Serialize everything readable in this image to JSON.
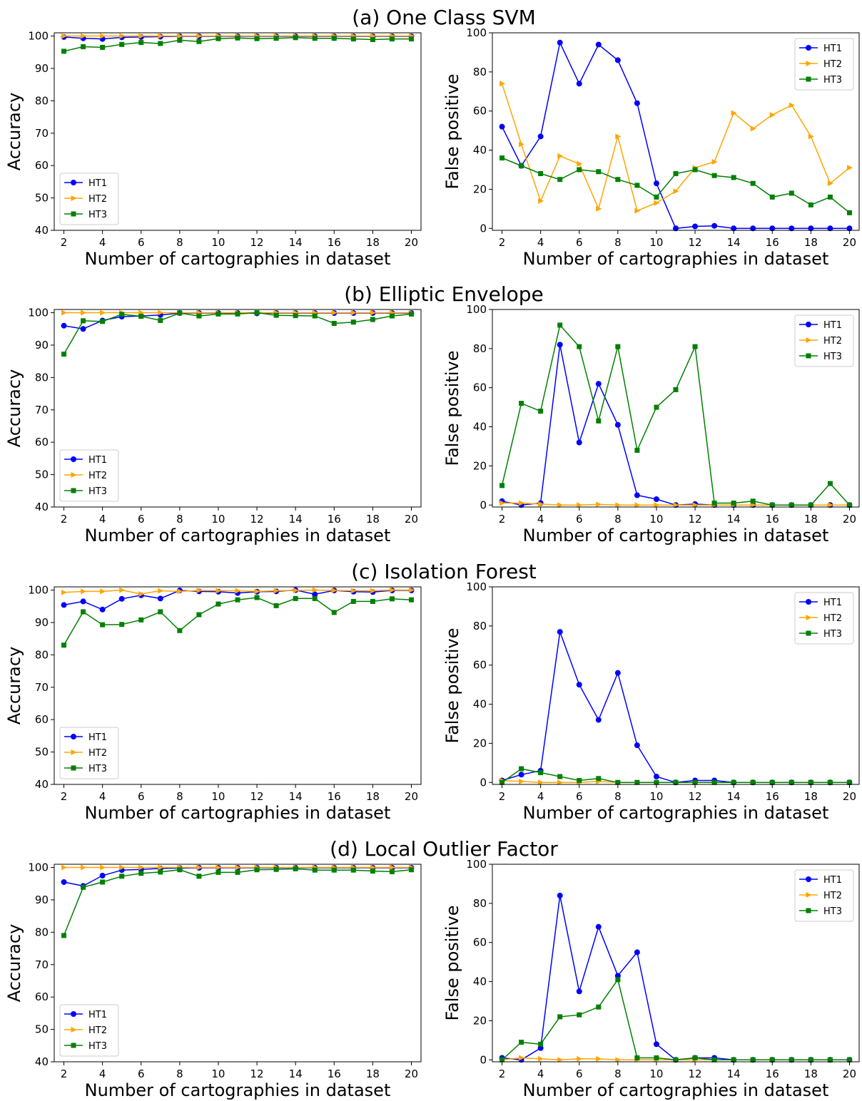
{
  "series_styles": [
    {
      "name": "HT1",
      "color": "#0000ff",
      "marker": "circle"
    },
    {
      "name": "HT2",
      "color": "#ffa500",
      "marker": "triangle-right"
    },
    {
      "name": "HT3",
      "color": "#008000",
      "marker": "square"
    }
  ],
  "rows": [
    {
      "title": "(a) One Class SVM"
    },
    {
      "title": "(b) Elliptic Envelope"
    },
    {
      "title": "(c) Isolation Forest"
    },
    {
      "title": "(d) Local Outlier Factor"
    }
  ],
  "chart_data": [
    {
      "type": "line",
      "row": 0,
      "col": 0,
      "title": "",
      "xlabel": "Number of cartographies in dataset",
      "ylabel": "Accuracy",
      "xlim": [
        1.5,
        20.5
      ],
      "ylim": [
        40,
        101
      ],
      "xticks": [
        2,
        4,
        6,
        8,
        10,
        12,
        14,
        16,
        18,
        20
      ],
      "yticks": [
        40,
        50,
        60,
        70,
        80,
        90,
        100
      ],
      "legend": "bottom-left",
      "x": [
        2,
        3,
        4,
        5,
        6,
        7,
        8,
        9,
        10,
        11,
        12,
        13,
        14,
        15,
        16,
        17,
        18,
        19,
        20
      ],
      "series": [
        {
          "name": "HT1",
          "values": [
            99.7,
            99.3,
            99.1,
            99.6,
            99.7,
            99.8,
            99.9,
            99.9,
            99.9,
            99.9,
            99.9,
            99.9,
            99.9,
            99.9,
            99.9,
            99.9,
            99.9,
            99.9,
            99.9
          ]
        },
        {
          "name": "HT2",
          "values": [
            100.0,
            100.0,
            100.0,
            100.0,
            100.0,
            100.0,
            100.0,
            100.0,
            100.0,
            100.0,
            100.0,
            100.0,
            100.0,
            100.0,
            100.0,
            100.0,
            100.0,
            100.0,
            100.0
          ]
        },
        {
          "name": "HT3",
          "values": [
            95.3,
            96.7,
            96.5,
            97.4,
            98.0,
            97.7,
            98.7,
            98.3,
            99.2,
            99.4,
            99.2,
            99.3,
            99.5,
            99.3,
            99.3,
            99.1,
            98.9,
            99.1,
            99.1
          ]
        }
      ]
    },
    {
      "type": "line",
      "row": 0,
      "col": 1,
      "title": "",
      "xlabel": "Number of cartographies in dataset",
      "ylabel": "False positive",
      "xlim": [
        1.5,
        20.5
      ],
      "ylim": [
        -1,
        100
      ],
      "xticks": [
        2,
        4,
        6,
        8,
        10,
        12,
        14,
        16,
        18,
        20
      ],
      "yticks": [
        0,
        20,
        40,
        60,
        80,
        100
      ],
      "legend": "top-right",
      "x": [
        2,
        3,
        4,
        5,
        6,
        7,
        8,
        9,
        10,
        11,
        12,
        13,
        14,
        15,
        16,
        17,
        18,
        19,
        20
      ],
      "series": [
        {
          "name": "HT1",
          "values": [
            52,
            32,
            47,
            95,
            74,
            94,
            86,
            64,
            23,
            0,
            1,
            1.3,
            0,
            0,
            0,
            0,
            0,
            0,
            0
          ]
        },
        {
          "name": "HT2",
          "values": [
            74,
            43,
            14,
            37,
            33,
            10,
            47,
            9,
            13,
            19,
            31,
            34,
            59,
            51,
            58,
            63,
            47,
            23,
            31
          ]
        },
        {
          "name": "HT3",
          "values": [
            36,
            32,
            28,
            25,
            30,
            29,
            25,
            22,
            16,
            28,
            30,
            27,
            26,
            23,
            16,
            18,
            12,
            16,
            8
          ]
        }
      ]
    },
    {
      "type": "line",
      "row": 1,
      "col": 0,
      "title": "",
      "xlabel": "Number of cartographies in dataset",
      "ylabel": "Accuracy",
      "xlim": [
        1.5,
        20.5
      ],
      "ylim": [
        40,
        101
      ],
      "xticks": [
        2,
        4,
        6,
        8,
        10,
        12,
        14,
        16,
        18,
        20
      ],
      "yticks": [
        40,
        50,
        60,
        70,
        80,
        90,
        100
      ],
      "legend": "bottom-left",
      "x": [
        2,
        3,
        4,
        5,
        6,
        7,
        8,
        9,
        10,
        11,
        12,
        13,
        14,
        15,
        16,
        17,
        18,
        19,
        20
      ],
      "series": [
        {
          "name": "HT1",
          "values": [
            96.0,
            95.0,
            97.6,
            98.8,
            99.0,
            99.3,
            99.9,
            99.9,
            99.9,
            99.9,
            99.8,
            99.9,
            99.9,
            99.9,
            99.9,
            99.9,
            99.9,
            99.9,
            99.9
          ]
        },
        {
          "name": "HT2",
          "values": [
            100.0,
            100.0,
            100.0,
            100.0,
            100.0,
            100.0,
            100.0,
            100.0,
            100.0,
            100.0,
            100.0,
            100.0,
            100.0,
            100.0,
            100.0,
            100.0,
            100.0,
            100.0,
            100.0
          ]
        },
        {
          "name": "HT3",
          "values": [
            87.2,
            97.5,
            97.3,
            99.5,
            98.9,
            97.6,
            99.9,
            99.0,
            99.6,
            99.6,
            100.0,
            99.2,
            99.1,
            99.0,
            96.7,
            97.1,
            97.9,
            99.0,
            99.6
          ]
        }
      ]
    },
    {
      "type": "line",
      "row": 1,
      "col": 1,
      "title": "",
      "xlabel": "Number of cartographies in dataset",
      "ylabel": "False positive",
      "xlim": [
        1.5,
        20.5
      ],
      "ylim": [
        -1,
        100
      ],
      "xticks": [
        2,
        4,
        6,
        8,
        10,
        12,
        14,
        16,
        18,
        20
      ],
      "yticks": [
        0,
        20,
        40,
        60,
        80,
        100
      ],
      "legend": "top-right",
      "x": [
        2,
        3,
        4,
        5,
        6,
        7,
        8,
        9,
        10,
        11,
        12,
        13,
        14,
        15,
        16,
        17,
        18,
        19,
        20
      ],
      "series": [
        {
          "name": "HT1",
          "values": [
            2,
            0,
            1,
            82,
            32,
            62,
            41,
            5,
            3,
            0,
            0.5,
            0,
            0,
            0,
            0,
            0,
            0,
            0,
            0
          ]
        },
        {
          "name": "HT2",
          "values": [
            1,
            1,
            0.5,
            0,
            0,
            0.3,
            0,
            0,
            0,
            0,
            0,
            0,
            0,
            0,
            0,
            0,
            0,
            0,
            0
          ]
        },
        {
          "name": "HT3",
          "values": [
            10,
            52,
            48,
            92,
            81,
            43,
            81,
            28,
            50,
            59,
            81,
            1,
            1,
            2,
            0,
            0,
            0,
            11,
            0
          ]
        }
      ]
    },
    {
      "type": "line",
      "row": 2,
      "col": 0,
      "title": "",
      "xlabel": "Number of cartographies in dataset",
      "ylabel": "Accuracy",
      "xlim": [
        1.5,
        20.5
      ],
      "ylim": [
        40,
        101
      ],
      "xticks": [
        2,
        4,
        6,
        8,
        10,
        12,
        14,
        16,
        18,
        20
      ],
      "yticks": [
        40,
        50,
        60,
        70,
        80,
        90,
        100
      ],
      "legend": "bottom-left",
      "x": [
        2,
        3,
        4,
        5,
        6,
        7,
        8,
        9,
        10,
        11,
        12,
        13,
        14,
        15,
        16,
        17,
        18,
        19,
        20
      ],
      "series": [
        {
          "name": "HT1",
          "values": [
            95.4,
            96.5,
            94.0,
            97.3,
            98.4,
            97.4,
            99.9,
            99.6,
            99.5,
            99.1,
            99.5,
            99.6,
            100.0,
            98.7,
            99.9,
            99.5,
            99.4,
            99.9,
            99.9
          ]
        },
        {
          "name": "HT2",
          "values": [
            99.3,
            99.6,
            99.6,
            100.0,
            98.8,
            99.8,
            99.6,
            99.9,
            99.8,
            99.8,
            99.6,
            99.8,
            99.9,
            100.0,
            99.9,
            99.8,
            99.8,
            100.0,
            100.0
          ]
        },
        {
          "name": "HT3",
          "values": [
            83.0,
            93.3,
            89.3,
            89.4,
            90.8,
            93.3,
            87.5,
            92.4,
            95.7,
            97.0,
            97.7,
            95.2,
            97.4,
            97.4,
            93.1,
            96.5,
            96.5,
            97.3,
            97.0
          ]
        }
      ]
    },
    {
      "type": "line",
      "row": 2,
      "col": 1,
      "title": "",
      "xlabel": "Number of cartographies in dataset",
      "ylabel": "False positive",
      "xlim": [
        1.5,
        20.5
      ],
      "ylim": [
        -1,
        100
      ],
      "xticks": [
        2,
        4,
        6,
        8,
        10,
        12,
        14,
        16,
        18,
        20
      ],
      "yticks": [
        0,
        20,
        40,
        60,
        80,
        100
      ],
      "legend": "top-right",
      "x": [
        2,
        3,
        4,
        5,
        6,
        7,
        8,
        9,
        10,
        11,
        12,
        13,
        14,
        15,
        16,
        17,
        18,
        19,
        20
      ],
      "series": [
        {
          "name": "HT1",
          "values": [
            1,
            4,
            6,
            77,
            50,
            32,
            56,
            19,
            3,
            0,
            1,
            1,
            0,
            0,
            0,
            0,
            0,
            0,
            0
          ]
        },
        {
          "name": "HT2",
          "values": [
            1,
            0.5,
            0,
            0,
            0,
            0.5,
            0,
            0,
            0,
            0,
            0,
            0,
            0,
            0,
            0,
            0,
            0,
            0,
            0
          ]
        },
        {
          "name": "HT3",
          "values": [
            0,
            7,
            5,
            3,
            1,
            2,
            0,
            0,
            0,
            0,
            0,
            0,
            0,
            0,
            0,
            0,
            0,
            0,
            0
          ]
        }
      ]
    },
    {
      "type": "line",
      "row": 3,
      "col": 0,
      "title": "",
      "xlabel": "Number of cartographies in dataset",
      "ylabel": "Accuracy",
      "xlim": [
        1.5,
        20.5
      ],
      "ylim": [
        40,
        101
      ],
      "xticks": [
        2,
        4,
        6,
        8,
        10,
        12,
        14,
        16,
        18,
        20
      ],
      "yticks": [
        40,
        50,
        60,
        70,
        80,
        90,
        100
      ],
      "legend": "bottom-left",
      "x": [
        2,
        3,
        4,
        5,
        6,
        7,
        8,
        9,
        10,
        11,
        12,
        13,
        14,
        15,
        16,
        17,
        18,
        19,
        20
      ],
      "series": [
        {
          "name": "HT1",
          "values": [
            95.5,
            94.3,
            97.5,
            99.2,
            99.4,
            99.7,
            99.8,
            99.9,
            99.9,
            99.9,
            99.9,
            99.9,
            99.9,
            99.9,
            99.9,
            99.9,
            99.9,
            99.9,
            99.9
          ]
        },
        {
          "name": "HT2",
          "values": [
            100.0,
            100.0,
            100.0,
            100.0,
            100.0,
            100.0,
            100.0,
            100.0,
            100.0,
            100.0,
            100.0,
            100.0,
            100.0,
            100.0,
            100.0,
            100.0,
            100.0,
            100.0,
            100.0
          ]
        },
        {
          "name": "HT3",
          "values": [
            79.0,
            93.9,
            95.5,
            97.3,
            98.2,
            98.6,
            99.3,
            97.3,
            98.5,
            98.5,
            99.3,
            99.4,
            99.6,
            99.2,
            99.2,
            99.2,
            98.9,
            98.7,
            99.3
          ]
        }
      ]
    },
    {
      "type": "line",
      "row": 3,
      "col": 1,
      "title": "",
      "xlabel": "Number of cartographies in dataset",
      "ylabel": "False positive",
      "xlim": [
        1.5,
        20.5
      ],
      "ylim": [
        -1,
        100
      ],
      "xticks": [
        2,
        4,
        6,
        8,
        10,
        12,
        14,
        16,
        18,
        20
      ],
      "yticks": [
        0,
        20,
        40,
        60,
        80,
        100
      ],
      "legend": "top-right",
      "x": [
        2,
        3,
        4,
        5,
        6,
        7,
        8,
        9,
        10,
        11,
        12,
        13,
        14,
        15,
        16,
        17,
        18,
        19,
        20
      ],
      "series": [
        {
          "name": "HT1",
          "values": [
            1,
            0,
            6,
            84,
            35,
            68,
            43,
            55,
            8,
            0,
            1,
            1,
            0,
            0,
            0,
            0,
            0,
            0,
            0
          ]
        },
        {
          "name": "HT2",
          "values": [
            0,
            1,
            0.5,
            0,
            0.5,
            0.5,
            0,
            0,
            0,
            0,
            0,
            0,
            0,
            0,
            0,
            0,
            0,
            0,
            0
          ]
        },
        {
          "name": "HT3",
          "values": [
            0,
            9,
            8,
            22,
            23,
            27,
            41,
            1,
            1,
            0,
            1,
            0,
            0,
            0,
            0,
            0,
            0,
            0,
            0
          ]
        }
      ]
    }
  ]
}
